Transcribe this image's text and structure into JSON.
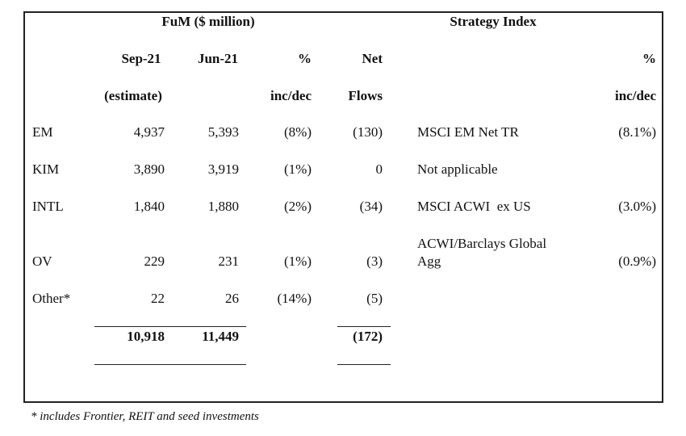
{
  "header": {
    "fum_title": "FuM ($ million)",
    "strategy_title": "Strategy Index",
    "col_sep": "Sep-21",
    "col_sep_sub": "(estimate)",
    "col_jun": "Jun-21",
    "col_pct": "%",
    "col_pct_sub": "inc/dec",
    "col_net": "Net",
    "col_net_sub": "Flows",
    "col_idx_pct": "%",
    "col_idx_pct_sub": "inc/dec"
  },
  "rows": [
    {
      "label": "EM",
      "sep": "4,937",
      "jun": "5,393",
      "pct": "(8%)",
      "net": "(130)",
      "index": "MSCI EM Net TR",
      "index_line2": "",
      "index_pct": "(8.1%)"
    },
    {
      "label": "KIM",
      "sep": "3,890",
      "jun": "3,919",
      "pct": "(1%)",
      "net": "0",
      "index": "Not applicable",
      "index_line2": "",
      "index_pct": ""
    },
    {
      "label": "INTL",
      "sep": "1,840",
      "jun": "1,880",
      "pct": "(2%)",
      "net": "(34)",
      "index": "MSCI ACWI  ex US",
      "index_line2": "",
      "index_pct": "(3.0%)"
    },
    {
      "label": "OV",
      "sep": "229",
      "jun": "231",
      "pct": "(1%)",
      "net": "(3)",
      "index": "ACWI/Barclays Global",
      "index_line2": "Agg",
      "index_pct": "(0.9%)"
    },
    {
      "label": "Other*",
      "sep": "22",
      "jun": "26",
      "pct": "(14%)",
      "net": "(5)",
      "index": "",
      "index_line2": "",
      "index_pct": ""
    }
  ],
  "totals": {
    "sep": "10,918",
    "jun": "11,449",
    "net": "(172)"
  },
  "footnote": "* includes Frontier, REIT and seed investments"
}
